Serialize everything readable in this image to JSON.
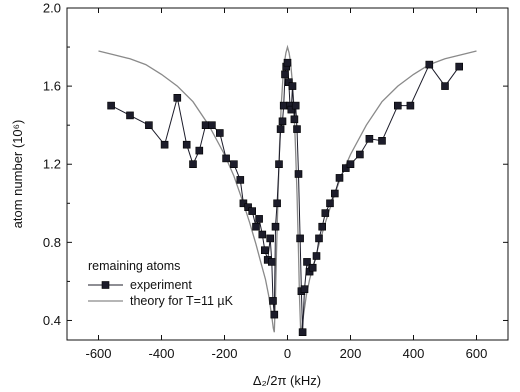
{
  "chart_data": {
    "type": "scatter",
    "xlabel": "Δ₂/2π (kHz)",
    "ylabel": "atom number (10⁶)",
    "xlim": [
      -700,
      700
    ],
    "ylim": [
      0.3,
      2.0
    ],
    "xticks": [
      -600,
      -400,
      -200,
      0,
      200,
      400,
      600
    ],
    "yticks": [
      0.4,
      0.8,
      1.2,
      1.6,
      2.0
    ],
    "x_tick_labels": [
      "-600",
      "-400",
      "-200",
      "0",
      "200",
      "400",
      "600"
    ],
    "y_tick_labels": [
      "0.4",
      "0.8",
      "1.2",
      "1.6",
      "2.0"
    ],
    "legend": {
      "title": "remaining atoms",
      "placement": "bottom-left",
      "entries": [
        "experiment",
        "theory for T=11 µK"
      ]
    },
    "colors": {
      "experiment": "#1c1c2a",
      "theory": "#8a8a8a"
    },
    "series": [
      {
        "name": "experiment",
        "kind": "line+markers",
        "points": [
          [
            -560,
            1.5
          ],
          [
            -500,
            1.45
          ],
          [
            -440,
            1.4
          ],
          [
            -390,
            1.3
          ],
          [
            -350,
            1.54
          ],
          [
            -320,
            1.3
          ],
          [
            -300,
            1.2
          ],
          [
            -280,
            1.27
          ],
          [
            -260,
            1.4
          ],
          [
            -240,
            1.4
          ],
          [
            -215,
            1.36
          ],
          [
            -195,
            1.23
          ],
          [
            -170,
            1.2
          ],
          [
            -150,
            1.12
          ],
          [
            -140,
            1.0
          ],
          [
            -125,
            0.98
          ],
          [
            -112,
            0.96
          ],
          [
            -100,
            0.88
          ],
          [
            -90,
            0.92
          ],
          [
            -80,
            0.84
          ],
          [
            -72,
            0.76
          ],
          [
            -63,
            0.71
          ],
          [
            -55,
            0.82
          ],
          [
            -50,
            0.7
          ],
          [
            -46,
            0.5
          ],
          [
            -42,
            0.43
          ],
          [
            -38,
            0.88
          ],
          [
            -33,
            1.0
          ],
          [
            -27,
            1.2
          ],
          [
            -22,
            1.38
          ],
          [
            -16,
            1.42
          ],
          [
            -12,
            1.5
          ],
          [
            -8,
            1.66
          ],
          [
            -4,
            1.7
          ],
          [
            0,
            1.72
          ],
          [
            4,
            1.62
          ],
          [
            8,
            1.5
          ],
          [
            12,
            1.48
          ],
          [
            16,
            1.6
          ],
          [
            22,
            1.43
          ],
          [
            26,
            1.5
          ],
          [
            30,
            1.38
          ],
          [
            35,
            1.15
          ],
          [
            40,
            0.82
          ],
          [
            44,
            0.55
          ],
          [
            48,
            0.34
          ],
          [
            54,
            0.56
          ],
          [
            62,
            0.7
          ],
          [
            70,
            0.65
          ],
          [
            80,
            0.67
          ],
          [
            92,
            0.73
          ],
          [
            100,
            0.82
          ],
          [
            110,
            0.88
          ],
          [
            120,
            0.95
          ],
          [
            135,
            1.0
          ],
          [
            150,
            1.05
          ],
          [
            165,
            1.13
          ],
          [
            185,
            1.18
          ],
          [
            200,
            1.2
          ],
          [
            230,
            1.25
          ],
          [
            260,
            1.33
          ],
          [
            300,
            1.32
          ],
          [
            350,
            1.5
          ],
          [
            390,
            1.5
          ],
          [
            450,
            1.71
          ],
          [
            500,
            1.6
          ],
          [
            545,
            1.7
          ]
        ]
      },
      {
        "name": "theory for T=11 µK",
        "kind": "line",
        "points": [
          [
            -600,
            1.78
          ],
          [
            -550,
            1.76
          ],
          [
            -500,
            1.74
          ],
          [
            -450,
            1.71
          ],
          [
            -400,
            1.66
          ],
          [
            -350,
            1.6
          ],
          [
            -300,
            1.52
          ],
          [
            -250,
            1.4
          ],
          [
            -200,
            1.25
          ],
          [
            -170,
            1.14
          ],
          [
            -140,
            1.0
          ],
          [
            -120,
            0.9
          ],
          [
            -100,
            0.79
          ],
          [
            -85,
            0.7
          ],
          [
            -70,
            0.61
          ],
          [
            -60,
            0.53
          ],
          [
            -50,
            0.42
          ],
          [
            -45,
            0.36
          ],
          [
            -42,
            0.34
          ],
          [
            -38,
            0.52
          ],
          [
            -35,
            0.75
          ],
          [
            -30,
            1.05
          ],
          [
            -25,
            1.3
          ],
          [
            -20,
            1.5
          ],
          [
            -15,
            1.63
          ],
          [
            -10,
            1.72
          ],
          [
            -5,
            1.77
          ],
          [
            0,
            1.8
          ],
          [
            5,
            1.77
          ],
          [
            10,
            1.72
          ],
          [
            15,
            1.63
          ],
          [
            20,
            1.5
          ],
          [
            25,
            1.3
          ],
          [
            30,
            1.05
          ],
          [
            35,
            0.75
          ],
          [
            38,
            0.52
          ],
          [
            42,
            0.34
          ],
          [
            45,
            0.36
          ],
          [
            50,
            0.42
          ],
          [
            60,
            0.53
          ],
          [
            70,
            0.61
          ],
          [
            85,
            0.7
          ],
          [
            100,
            0.79
          ],
          [
            120,
            0.9
          ],
          [
            140,
            1.0
          ],
          [
            170,
            1.14
          ],
          [
            200,
            1.25
          ],
          [
            250,
            1.4
          ],
          [
            300,
            1.52
          ],
          [
            350,
            1.6
          ],
          [
            400,
            1.66
          ],
          [
            450,
            1.71
          ],
          [
            500,
            1.74
          ],
          [
            550,
            1.76
          ],
          [
            600,
            1.78
          ]
        ]
      }
    ]
  }
}
